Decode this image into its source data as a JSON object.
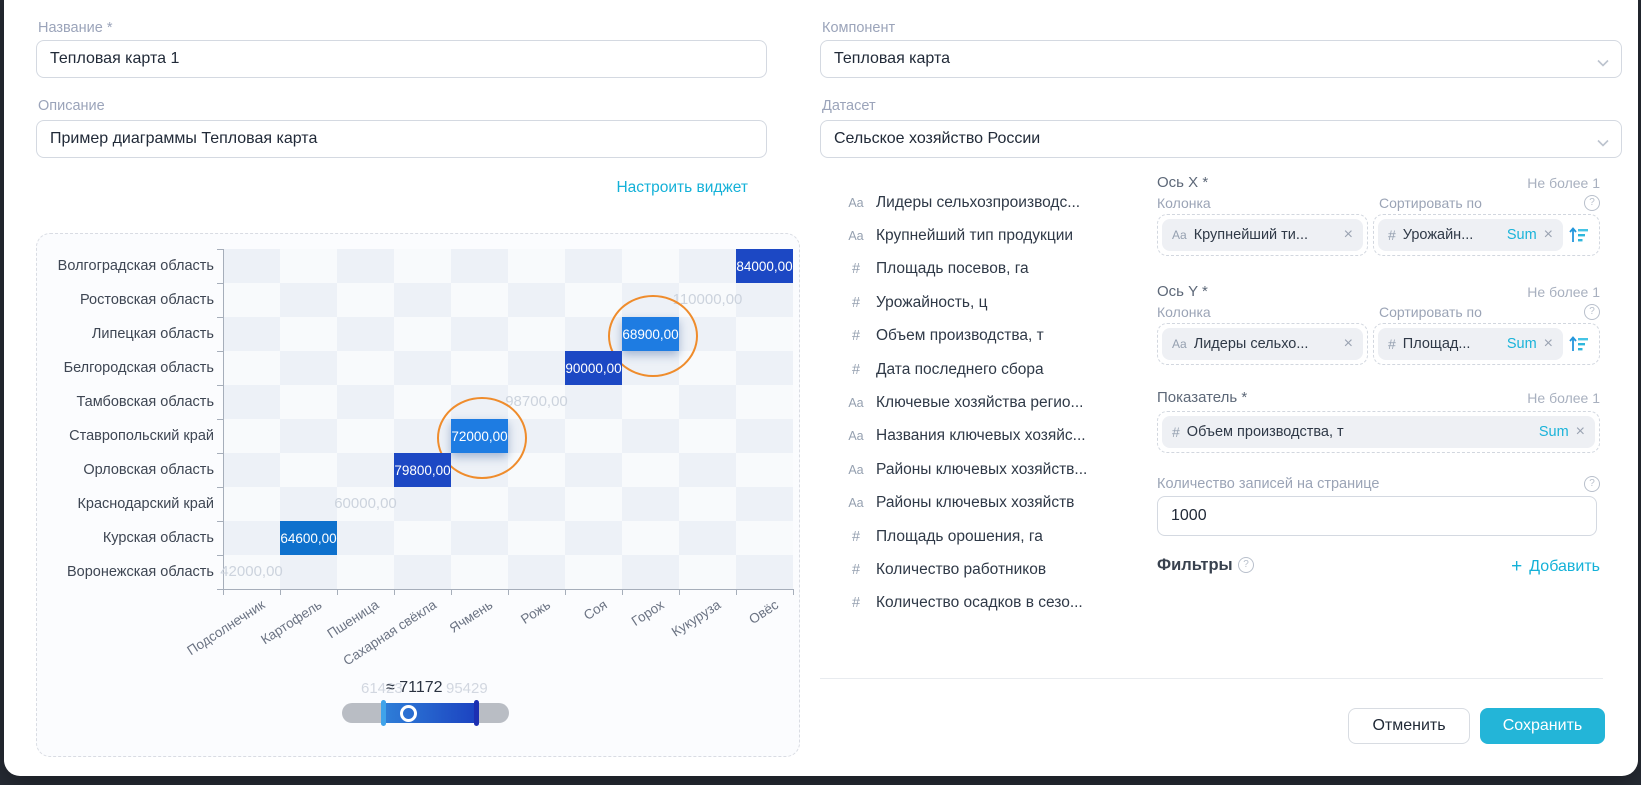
{
  "accent": "#14b1d8",
  "icons": {
    "remove": "×",
    "help": "?",
    "plus": "+"
  },
  "left": {
    "name_label": "Название *",
    "name_value": "Тепловая карта 1",
    "desc_label": "Описание",
    "desc_value": "Пример диаграммы Тепловая карта",
    "configure_link": "Настроить виджет"
  },
  "right": {
    "component_label": "Компонент",
    "component_value": "Тепловая карта",
    "dataset_label": "Датасет",
    "dataset_value": "Сельское хозяйство России"
  },
  "fields": [
    {
      "icon": "Aa",
      "label": "Лидеры сельхозпроизводс..."
    },
    {
      "icon": "Aa",
      "label": "Крупнейший тип продукции"
    },
    {
      "icon": "#",
      "label": "Площадь посевов, га"
    },
    {
      "icon": "#",
      "label": "Урожайность, ц"
    },
    {
      "icon": "#",
      "label": "Объем производства, т"
    },
    {
      "icon": "#",
      "label": "Дата последнего сбора"
    },
    {
      "icon": "Aa",
      "label": "Ключевые хозяйства регио..."
    },
    {
      "icon": "Aa",
      "label": "Названия ключевых хозяйс..."
    },
    {
      "icon": "Aa",
      "label": "Районы ключевых хозяйств..."
    },
    {
      "icon": "Aa",
      "label": "Районы ключевых хозяйств"
    },
    {
      "icon": "#",
      "label": "Площадь орошения, га"
    },
    {
      "icon": "#",
      "label": "Количество работников"
    },
    {
      "icon": "#",
      "label": "Количество осадков в сезо..."
    }
  ],
  "config": {
    "axis_x": {
      "title": "Ось X *",
      "limit": "Не более 1",
      "column_label": "Колонка",
      "sort_label": "Сортировать по",
      "column_chip": {
        "icon": "Aa",
        "label": "Крупнейший ти..."
      },
      "sort_chip": {
        "icon": "#",
        "label": "Урожайн...",
        "agg": "Sum"
      }
    },
    "axis_y": {
      "title": "Ось Y *",
      "limit": "Не более 1",
      "column_label": "Колонка",
      "sort_label": "Сортировать по",
      "column_chip": {
        "icon": "Aa",
        "label": "Лидеры сельхо..."
      },
      "sort_chip": {
        "icon": "#",
        "label": "Площад...",
        "agg": "Sum"
      }
    },
    "measure": {
      "title": "Показатель *",
      "limit": "Не более 1",
      "chip": {
        "icon": "#",
        "label": "Объем производства, т",
        "agg": "Sum"
      }
    },
    "page_size": {
      "label": "Количество записей на странице",
      "value": "1000"
    },
    "filters": {
      "label": "Фильтры",
      "add_label": "Добавить"
    }
  },
  "footer": {
    "cancel": "Отменить",
    "save": "Сохранить"
  },
  "chart_data": {
    "type": "heatmap",
    "x_categories": [
      "Подсолнечник",
      "Картофель",
      "Пшеница",
      "Сахарная свёкла",
      "Ячмень",
      "Рожь",
      "Соя",
      "Горох",
      "Кукуруза",
      "Овёс"
    ],
    "y_categories": [
      "Волгоградская область",
      "Ростовская область",
      "Липецкая область",
      "Белгородская область",
      "Тамбовская область",
      "Ставропольский край",
      "Орловская область",
      "Краснодарский край",
      "Курская область",
      "Воронежская область"
    ],
    "cells": [
      {
        "x": "Овёс",
        "y": "Волгоградская область",
        "value": 84000,
        "label": "84000,00",
        "style": "dark",
        "highlighted": false
      },
      {
        "x": "Кукуруза",
        "y": "Ростовская область",
        "value": 110000,
        "label": "110000,00",
        "style": "faded",
        "highlighted": false
      },
      {
        "x": "Горох",
        "y": "Липецкая область",
        "value": 68900,
        "label": "68900,00",
        "style": "bright",
        "highlighted": true
      },
      {
        "x": "Соя",
        "y": "Белгородская область",
        "value": 90000,
        "label": "90000,00",
        "style": "dark",
        "highlighted": false
      },
      {
        "x": "Рожь",
        "y": "Тамбовская область",
        "value": 98700,
        "label": "98700,00",
        "style": "faded",
        "highlighted": false
      },
      {
        "x": "Ячмень",
        "y": "Ставропольский край",
        "value": 72000,
        "label": "72000,00",
        "style": "bright",
        "highlighted": true
      },
      {
        "x": "Сахарная свёкла",
        "y": "Орловская область",
        "value": 79800,
        "label": "79800,00",
        "style": "dark",
        "highlighted": false
      },
      {
        "x": "Пшеница",
        "y": "Краснодарский край",
        "value": 60000,
        "label": "60000,00",
        "style": "faded",
        "highlighted": false
      },
      {
        "x": "Картофель",
        "y": "Курская область",
        "value": 64600,
        "label": "64600,00",
        "style": "medium",
        "highlighted": false
      },
      {
        "x": "Подсолнечник",
        "y": "Воронежская область",
        "value": 42000,
        "label": "42000,00",
        "style": "faded",
        "highlighted": false
      }
    ],
    "range_slider": {
      "min_label": "61423",
      "current_label": "≈ 71172",
      "max_label": "95429"
    }
  }
}
